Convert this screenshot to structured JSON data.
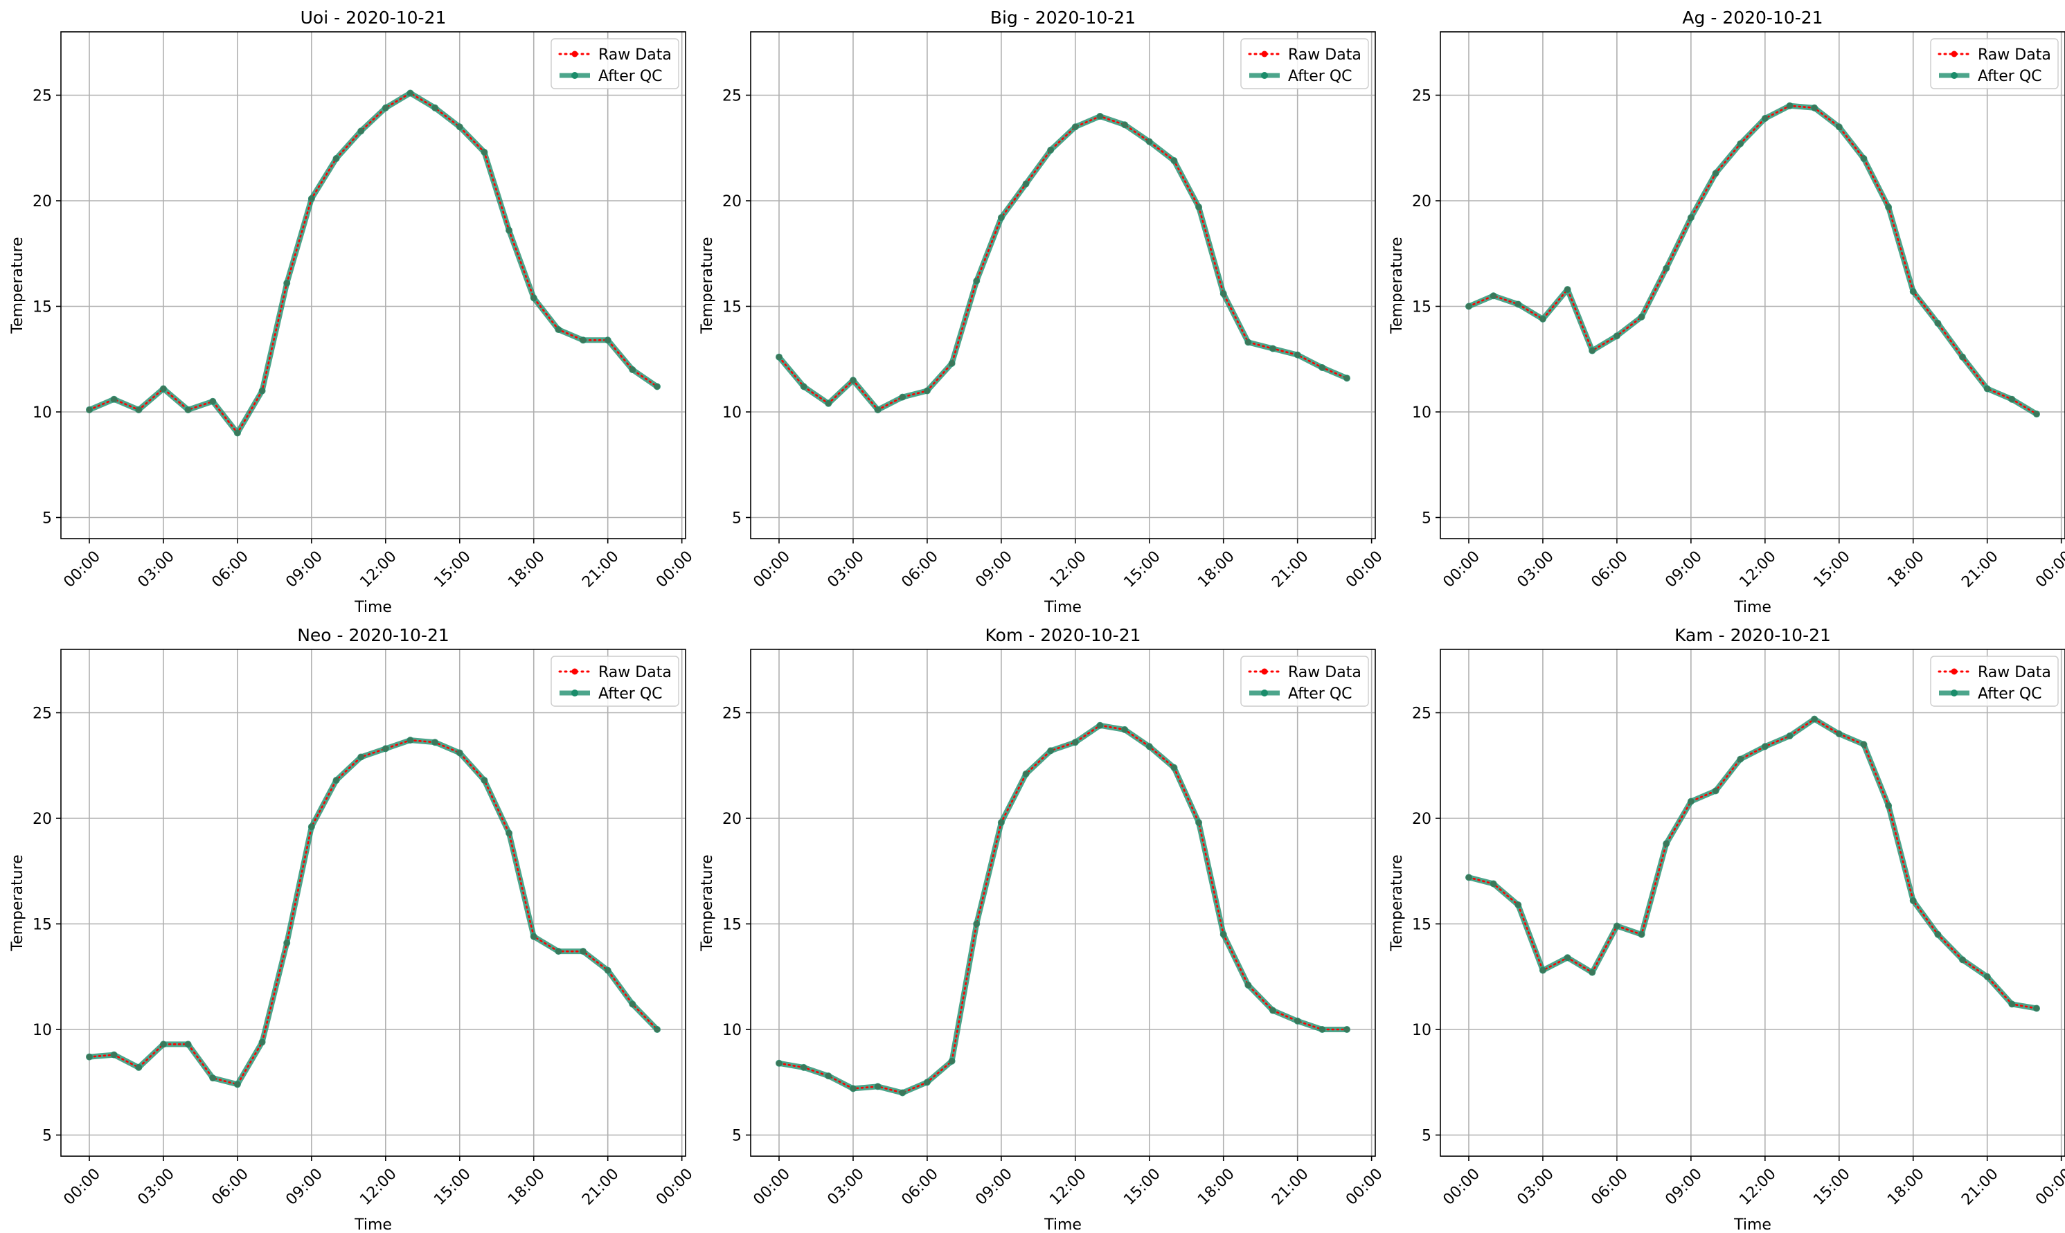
{
  "chart_data": [
    {
      "type": "line",
      "title": "Uoi - 2020-10-21",
      "xlabel": "Time",
      "ylabel": "Temperature",
      "x_hours": [
        0,
        1,
        2,
        3,
        4,
        5,
        6,
        7,
        8,
        9,
        10,
        11,
        12,
        13,
        14,
        15,
        16,
        17,
        18,
        19,
        20,
        21,
        22,
        23
      ],
      "xticks": [
        "00:00",
        "03:00",
        "06:00",
        "09:00",
        "12:00",
        "15:00",
        "18:00",
        "21:00",
        "00:00"
      ],
      "ylim": [
        4,
        28
      ],
      "yticks": [
        "5",
        "10",
        "15",
        "20",
        "25"
      ],
      "grid": true,
      "legend": "top-right",
      "series": [
        {
          "name": "Raw Data",
          "values": [
            10.1,
            10.6,
            10.1,
            11.1,
            10.1,
            10.5,
            9.0,
            11.0,
            16.1,
            20.1,
            22.0,
            23.3,
            24.4,
            25.1,
            24.4,
            23.5,
            22.3,
            18.6,
            15.4,
            13.9,
            13.4,
            13.4,
            12.0,
            11.2
          ]
        },
        {
          "name": "After QC",
          "values": [
            10.1,
            10.6,
            10.1,
            11.1,
            10.1,
            10.5,
            9.0,
            11.0,
            16.1,
            20.1,
            22.0,
            23.3,
            24.4,
            25.1,
            24.4,
            23.5,
            22.3,
            18.6,
            15.4,
            13.9,
            13.4,
            13.4,
            12.0,
            11.2
          ]
        }
      ]
    },
    {
      "type": "line",
      "title": "Big - 2020-10-21",
      "xlabel": "Time",
      "ylabel": "Temperature",
      "x_hours": [
        0,
        1,
        2,
        3,
        4,
        5,
        6,
        7,
        8,
        9,
        10,
        11,
        12,
        13,
        14,
        15,
        16,
        17,
        18,
        19,
        20,
        21,
        22,
        23
      ],
      "xticks": [
        "00:00",
        "03:00",
        "06:00",
        "09:00",
        "12:00",
        "15:00",
        "18:00",
        "21:00",
        "00:00"
      ],
      "ylim": [
        4,
        28
      ],
      "yticks": [
        "5",
        "10",
        "15",
        "20",
        "25"
      ],
      "grid": true,
      "legend": "top-right",
      "series": [
        {
          "name": "Raw Data",
          "values": [
            12.6,
            11.2,
            10.4,
            11.5,
            10.1,
            10.7,
            11.0,
            12.3,
            16.2,
            19.2,
            20.8,
            22.4,
            23.5,
            24.0,
            23.6,
            22.8,
            21.9,
            19.7,
            15.6,
            13.3,
            13.0,
            12.7,
            12.1,
            11.6
          ]
        },
        {
          "name": "After QC",
          "values": [
            12.6,
            11.2,
            10.4,
            11.5,
            10.1,
            10.7,
            11.0,
            12.3,
            16.2,
            19.2,
            20.8,
            22.4,
            23.5,
            24.0,
            23.6,
            22.8,
            21.9,
            19.7,
            15.6,
            13.3,
            13.0,
            12.7,
            12.1,
            11.6
          ]
        }
      ]
    },
    {
      "type": "line",
      "title": "Ag - 2020-10-21",
      "xlabel": "Time",
      "ylabel": "Temperature",
      "x_hours": [
        0,
        1,
        2,
        3,
        4,
        5,
        6,
        7,
        8,
        9,
        10,
        11,
        12,
        13,
        14,
        15,
        16,
        17,
        18,
        19,
        20,
        21,
        22,
        23
      ],
      "xticks": [
        "00:00",
        "03:00",
        "06:00",
        "09:00",
        "12:00",
        "15:00",
        "18:00",
        "21:00",
        "00:00"
      ],
      "ylim": [
        4,
        28
      ],
      "yticks": [
        "5",
        "10",
        "15",
        "20",
        "25"
      ],
      "grid": true,
      "legend": "top-right",
      "series": [
        {
          "name": "Raw Data",
          "values": [
            15.0,
            15.5,
            15.1,
            14.4,
            15.8,
            12.9,
            13.6,
            14.5,
            16.8,
            19.2,
            21.3,
            22.7,
            23.9,
            24.5,
            24.4,
            23.5,
            22.0,
            19.7,
            15.7,
            14.2,
            12.6,
            11.1,
            10.6,
            9.9
          ]
        },
        {
          "name": "After QC",
          "values": [
            15.0,
            15.5,
            15.1,
            14.4,
            15.8,
            12.9,
            13.6,
            14.5,
            16.8,
            19.2,
            21.3,
            22.7,
            23.9,
            24.5,
            24.4,
            23.5,
            22.0,
            19.7,
            15.7,
            14.2,
            12.6,
            11.1,
            10.6,
            9.9
          ]
        }
      ]
    },
    {
      "type": "line",
      "title": "Neo - 2020-10-21",
      "xlabel": "Time",
      "ylabel": "Temperature",
      "x_hours": [
        0,
        1,
        2,
        3,
        4,
        5,
        6,
        7,
        8,
        9,
        10,
        11,
        12,
        13,
        14,
        15,
        16,
        17,
        18,
        19,
        20,
        21,
        22,
        23
      ],
      "xticks": [
        "00:00",
        "03:00",
        "06:00",
        "09:00",
        "12:00",
        "15:00",
        "18:00",
        "21:00",
        "00:00"
      ],
      "ylim": [
        4,
        28
      ],
      "yticks": [
        "5",
        "10",
        "15",
        "20",
        "25"
      ],
      "grid": true,
      "legend": "top-right",
      "series": [
        {
          "name": "Raw Data",
          "values": [
            8.7,
            8.8,
            8.2,
            9.3,
            9.3,
            7.7,
            7.4,
            9.4,
            14.1,
            19.6,
            21.8,
            22.9,
            23.3,
            23.7,
            23.6,
            23.1,
            21.8,
            19.3,
            14.4,
            13.7,
            13.7,
            12.8,
            11.2,
            10.0
          ]
        },
        {
          "name": "After QC",
          "values": [
            8.7,
            8.8,
            8.2,
            9.3,
            9.3,
            7.7,
            7.4,
            9.4,
            14.1,
            19.6,
            21.8,
            22.9,
            23.3,
            23.7,
            23.6,
            23.1,
            21.8,
            19.3,
            14.4,
            13.7,
            13.7,
            12.8,
            11.2,
            10.0
          ]
        }
      ]
    },
    {
      "type": "line",
      "title": "Kom - 2020-10-21",
      "xlabel": "Time",
      "ylabel": "Temperature",
      "x_hours": [
        0,
        1,
        2,
        3,
        4,
        5,
        6,
        7,
        8,
        9,
        10,
        11,
        12,
        13,
        14,
        15,
        16,
        17,
        18,
        19,
        20,
        21,
        22,
        23
      ],
      "xticks": [
        "00:00",
        "03:00",
        "06:00",
        "09:00",
        "12:00",
        "15:00",
        "18:00",
        "21:00",
        "00:00"
      ],
      "ylim": [
        4,
        28
      ],
      "yticks": [
        "5",
        "10",
        "15",
        "20",
        "25"
      ],
      "grid": true,
      "legend": "top-right",
      "series": [
        {
          "name": "Raw Data",
          "values": [
            8.4,
            8.2,
            7.8,
            7.2,
            7.3,
            7.0,
            7.5,
            8.5,
            15.0,
            19.8,
            22.1,
            23.2,
            23.6,
            24.4,
            24.2,
            23.4,
            22.4,
            19.8,
            14.5,
            12.1,
            10.9,
            10.4,
            10.0,
            10.0
          ]
        },
        {
          "name": "After QC",
          "values": [
            8.4,
            8.2,
            7.8,
            7.2,
            7.3,
            7.0,
            7.5,
            8.5,
            15.0,
            19.8,
            22.1,
            23.2,
            23.6,
            24.4,
            24.2,
            23.4,
            22.4,
            19.8,
            14.5,
            12.1,
            10.9,
            10.4,
            10.0,
            10.0
          ]
        }
      ]
    },
    {
      "type": "line",
      "title": "Kam - 2020-10-21",
      "xlabel": "Time",
      "ylabel": "Temperature",
      "x_hours": [
        0,
        1,
        2,
        3,
        4,
        5,
        6,
        7,
        8,
        9,
        10,
        11,
        12,
        13,
        14,
        15,
        16,
        17,
        18,
        19,
        20,
        21,
        22,
        23
      ],
      "xticks": [
        "00:00",
        "03:00",
        "06:00",
        "09:00",
        "12:00",
        "15:00",
        "18:00",
        "21:00",
        "00:00"
      ],
      "ylim": [
        4,
        28
      ],
      "yticks": [
        "5",
        "10",
        "15",
        "20",
        "25"
      ],
      "grid": true,
      "legend": "top-right",
      "series": [
        {
          "name": "Raw Data",
          "values": [
            17.2,
            16.9,
            15.9,
            12.8,
            13.4,
            12.7,
            14.9,
            14.5,
            18.8,
            20.8,
            21.3,
            22.8,
            23.4,
            23.9,
            24.7,
            24.0,
            23.5,
            20.6,
            16.1,
            14.5,
            13.3,
            12.5,
            11.2,
            11.0
          ]
        },
        {
          "name": "After QC",
          "values": [
            17.2,
            16.9,
            15.9,
            12.8,
            13.4,
            12.7,
            14.9,
            14.5,
            18.8,
            20.8,
            21.3,
            22.8,
            23.4,
            23.9,
            24.7,
            24.0,
            23.5,
            20.6,
            16.1,
            14.5,
            13.3,
            12.5,
            11.2,
            11.0
          ]
        }
      ]
    }
  ],
  "colors": {
    "raw": "#ff0000",
    "qc": "#1a8c6a",
    "grid": "#b0b0b0",
    "axis": "#000000"
  }
}
